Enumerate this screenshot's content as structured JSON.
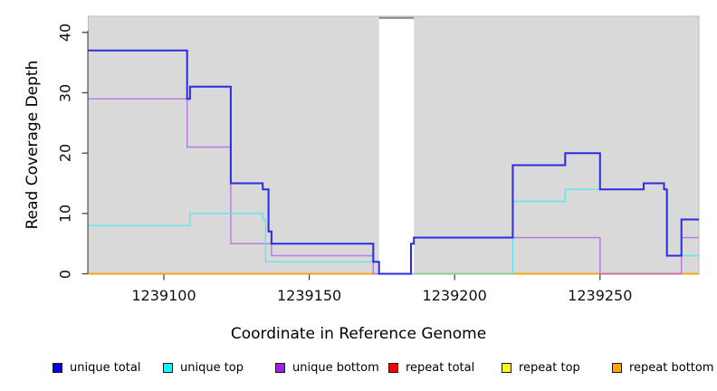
{
  "chart_data": {
    "type": "line",
    "subtype": "step_coverage",
    "title": "",
    "xlabel": "Coordinate in Reference Genome",
    "ylabel": "Read Coverage Depth",
    "xlim": [
      1239074,
      1239284
    ],
    "ylim": [
      0,
      42.6
    ],
    "x_ticks": [
      "1239100",
      "1239150",
      "1239200",
      "1239250"
    ],
    "x_tick_values": [
      1239100,
      1239150,
      1239200,
      1239250
    ],
    "y_ticks": [
      "0",
      "10",
      "20",
      "30",
      "40"
    ],
    "y_tick_values": [
      0,
      10,
      20,
      30,
      40
    ],
    "grid": false,
    "legend_position": "bottom",
    "plot_background": "#d9d9d9",
    "border_color": "#bcbcbc",
    "gap_cap_color": "#8c8c8c",
    "axis_color": "#3c3c3c",
    "gap_region": {
      "start": 1239174,
      "end": 1239186
    },
    "series": [
      {
        "name": "repeat total",
        "color": "#FF0000",
        "width": 1.4,
        "steps": [
          [
            1239074,
            0
          ]
        ],
        "end": 1239284
      },
      {
        "name": "repeat top",
        "color": "#FFFF00",
        "width": 1.4,
        "steps": [
          [
            1239074,
            0
          ]
        ],
        "end": 1239284
      },
      {
        "name": "repeat bottom",
        "color": "#FF9E0F",
        "width": 1.6,
        "steps": [
          [
            1239074,
            0
          ]
        ],
        "end": 1239284
      },
      {
        "name": "unique bottom",
        "color": "#B67BDC",
        "width": 1.4,
        "steps": [
          [
            1239074,
            29
          ],
          [
            1239108,
            21
          ],
          [
            1239123,
            5
          ],
          [
            1239137,
            3
          ],
          [
            1239172,
            0
          ],
          [
            1239185,
            5
          ],
          [
            1239186,
            6
          ],
          [
            1239250,
            0
          ],
          [
            1239278,
            6
          ]
        ],
        "end": 1239284
      },
      {
        "name": "unique top",
        "color": "#5CE6EE",
        "width": 1.4,
        "steps": [
          [
            1239074,
            8
          ],
          [
            1239109,
            10
          ],
          [
            1239134,
            9
          ],
          [
            1239135,
            2
          ],
          [
            1239174,
            0
          ],
          [
            1239220,
            12
          ],
          [
            1239238,
            14
          ],
          [
            1239265,
            15
          ],
          [
            1239272,
            14
          ],
          [
            1239273,
            3
          ]
        ],
        "end": 1239284
      },
      {
        "name": "unique total",
        "color": "#2B2BE0",
        "width": 2,
        "steps": [
          [
            1239074,
            37
          ],
          [
            1239108,
            29
          ],
          [
            1239109,
            31
          ],
          [
            1239123,
            15
          ],
          [
            1239134,
            14
          ],
          [
            1239136,
            7
          ],
          [
            1239137,
            5
          ],
          [
            1239172,
            2
          ],
          [
            1239174,
            0
          ],
          [
            1239185,
            5
          ],
          [
            1239186,
            6
          ],
          [
            1239220,
            18
          ],
          [
            1239238,
            20
          ],
          [
            1239250,
            14
          ],
          [
            1239265,
            15
          ],
          [
            1239272,
            14
          ],
          [
            1239273,
            3
          ],
          [
            1239278,
            9
          ]
        ],
        "end": 1239284
      }
    ],
    "overlap_segments": [
      {
        "from": 1239186,
        "to": 1239220,
        "value": 0,
        "color": "#8FCF8F"
      },
      {
        "from": 1239250,
        "to": 1239278,
        "value": 0,
        "color": "#C06BB0"
      }
    ]
  },
  "legend": {
    "items": [
      {
        "label": "unique total",
        "color": "#0000EE"
      },
      {
        "label": "unique top",
        "color": "#00FFFF"
      },
      {
        "label": "unique bottom",
        "color": "#A020F0"
      },
      {
        "label": "repeat total",
        "color": "#FF0000"
      },
      {
        "label": "repeat top",
        "color": "#FFFF00"
      },
      {
        "label": "repeat bottom",
        "color": "#FFA500"
      }
    ]
  }
}
